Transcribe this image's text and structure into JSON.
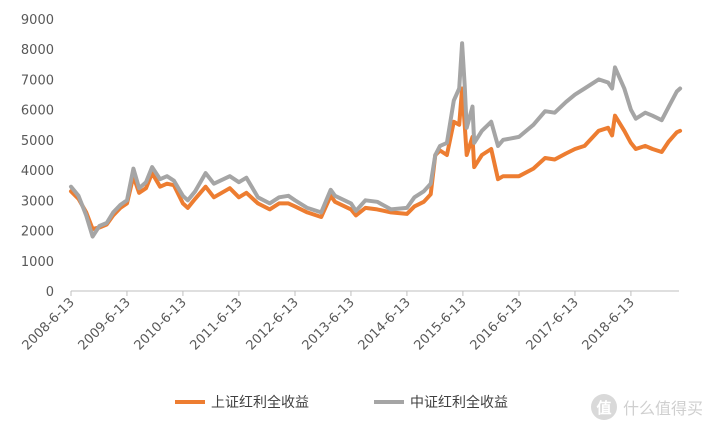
{
  "chart_data": {
    "type": "line",
    "title": "",
    "xlabel": "",
    "ylabel": "",
    "ylim": [
      0,
      9000
    ],
    "yticks": [
      0,
      1000,
      2000,
      3000,
      4000,
      5000,
      6000,
      7000,
      8000,
      9000
    ],
    "xlim": [
      "2008-06-13",
      "2019-04-30"
    ],
    "xticks": [
      "2008-6-13",
      "2009-6-13",
      "2010-6-13",
      "2011-6-13",
      "2012-6-13",
      "2013-6-13",
      "2014-6-13",
      "2015-6-13",
      "2016-6-13",
      "2017-6-13",
      "2018-6-13"
    ],
    "grid": false,
    "legend_position": "bottom",
    "series": [
      {
        "name": "上证红利全收益",
        "color": "#ED7D31",
        "points": [
          [
            "2008-06-13",
            3300
          ],
          [
            "2008-08-01",
            3050
          ],
          [
            "2008-09-20",
            2600
          ],
          [
            "2008-11-01",
            2050
          ],
          [
            "2008-12-15",
            2100
          ],
          [
            "2009-02-01",
            2200
          ],
          [
            "2009-03-15",
            2500
          ],
          [
            "2009-05-01",
            2750
          ],
          [
            "2009-06-13",
            2900
          ],
          [
            "2009-07-25",
            3800
          ],
          [
            "2009-08-31",
            3250
          ],
          [
            "2009-10-15",
            3400
          ],
          [
            "2009-11-24",
            3900
          ],
          [
            "2010-01-15",
            3450
          ],
          [
            "2010-03-01",
            3550
          ],
          [
            "2010-04-15",
            3500
          ],
          [
            "2010-06-13",
            2900
          ],
          [
            "2010-07-15",
            2750
          ],
          [
            "2010-09-01",
            3050
          ],
          [
            "2010-11-08",
            3450
          ],
          [
            "2011-01-01",
            3100
          ],
          [
            "2011-04-15",
            3400
          ],
          [
            "2011-06-13",
            3100
          ],
          [
            "2011-08-01",
            3250
          ],
          [
            "2011-10-15",
            2900
          ],
          [
            "2011-12-31",
            2700
          ],
          [
            "2012-03-01",
            2900
          ],
          [
            "2012-05-01",
            2900
          ],
          [
            "2012-06-13",
            2800
          ],
          [
            "2012-09-01",
            2600
          ],
          [
            "2012-12-01",
            2450
          ],
          [
            "2013-02-01",
            3150
          ],
          [
            "2013-03-01",
            2950
          ],
          [
            "2013-06-13",
            2700
          ],
          [
            "2013-07-15",
            2500
          ],
          [
            "2013-09-15",
            2750
          ],
          [
            "2013-12-01",
            2700
          ],
          [
            "2014-03-01",
            2600
          ],
          [
            "2014-06-13",
            2550
          ],
          [
            "2014-08-01",
            2800
          ],
          [
            "2014-10-01",
            2950
          ],
          [
            "2014-11-15",
            3200
          ],
          [
            "2014-12-15",
            4500
          ],
          [
            "2015-01-15",
            4650
          ],
          [
            "2015-03-01",
            4500
          ],
          [
            "2015-04-15",
            5600
          ],
          [
            "2015-05-20",
            5500
          ],
          [
            "2015-06-08",
            6700
          ],
          [
            "2015-06-25",
            5500
          ],
          [
            "2015-07-08",
            4500
          ],
          [
            "2015-08-15",
            5100
          ],
          [
            "2015-08-26",
            4100
          ],
          [
            "2015-10-15",
            4500
          ],
          [
            "2015-12-15",
            4700
          ],
          [
            "2016-01-28",
            3700
          ],
          [
            "2016-03-01",
            3800
          ],
          [
            "2016-06-13",
            3800
          ],
          [
            "2016-09-15",
            4050
          ],
          [
            "2016-11-30",
            4400
          ],
          [
            "2017-02-01",
            4350
          ],
          [
            "2017-04-15",
            4550
          ],
          [
            "2017-06-13",
            4700
          ],
          [
            "2017-08-15",
            4800
          ],
          [
            "2017-11-15",
            5300
          ],
          [
            "2018-01-15",
            5400
          ],
          [
            "2018-02-10",
            5150
          ],
          [
            "2018-03-01",
            5800
          ],
          [
            "2018-05-01",
            5300
          ],
          [
            "2018-06-13",
            4900
          ],
          [
            "2018-07-15",
            4700
          ],
          [
            "2018-09-15",
            4800
          ],
          [
            "2018-11-01",
            4700
          ],
          [
            "2018-12-31",
            4600
          ],
          [
            "2019-02-15",
            4950
          ],
          [
            "2019-04-08",
            5250
          ],
          [
            "2019-04-30",
            5300
          ]
        ]
      },
      {
        "name": "中证红利全收益",
        "color": "#A5A5A5",
        "points": [
          [
            "2008-06-13",
            3450
          ],
          [
            "2008-08-01",
            3150
          ],
          [
            "2008-09-20",
            2500
          ],
          [
            "2008-11-01",
            1800
          ],
          [
            "2008-12-15",
            2150
          ],
          [
            "2009-02-01",
            2250
          ],
          [
            "2009-03-15",
            2600
          ],
          [
            "2009-05-01",
            2850
          ],
          [
            "2009-06-13",
            3000
          ],
          [
            "2009-07-25",
            4050
          ],
          [
            "2009-08-31",
            3400
          ],
          [
            "2009-10-15",
            3600
          ],
          [
            "2009-11-24",
            4100
          ],
          [
            "2010-01-15",
            3700
          ],
          [
            "2010-03-01",
            3800
          ],
          [
            "2010-04-15",
            3650
          ],
          [
            "2010-06-13",
            3150
          ],
          [
            "2010-07-15",
            3000
          ],
          [
            "2010-09-01",
            3300
          ],
          [
            "2010-11-08",
            3900
          ],
          [
            "2011-01-01",
            3550
          ],
          [
            "2011-04-15",
            3800
          ],
          [
            "2011-06-13",
            3600
          ],
          [
            "2011-08-01",
            3750
          ],
          [
            "2011-10-15",
            3100
          ],
          [
            "2011-12-31",
            2900
          ],
          [
            "2012-03-01",
            3100
          ],
          [
            "2012-05-01",
            3150
          ],
          [
            "2012-06-13",
            3000
          ],
          [
            "2012-09-01",
            2750
          ],
          [
            "2012-12-01",
            2600
          ],
          [
            "2013-02-01",
            3350
          ],
          [
            "2013-03-01",
            3150
          ],
          [
            "2013-06-13",
            2900
          ],
          [
            "2013-07-15",
            2650
          ],
          [
            "2013-09-15",
            3000
          ],
          [
            "2013-12-01",
            2950
          ],
          [
            "2014-03-01",
            2700
          ],
          [
            "2014-06-13",
            2750
          ],
          [
            "2014-08-01",
            3100
          ],
          [
            "2014-10-01",
            3300
          ],
          [
            "2014-11-15",
            3550
          ],
          [
            "2014-12-15",
            4500
          ],
          [
            "2015-01-15",
            4800
          ],
          [
            "2015-03-01",
            4900
          ],
          [
            "2015-04-15",
            6300
          ],
          [
            "2015-05-20",
            6700
          ],
          [
            "2015-06-08",
            8200
          ],
          [
            "2015-06-25",
            6800
          ],
          [
            "2015-07-08",
            5400
          ],
          [
            "2015-08-15",
            6100
          ],
          [
            "2015-08-26",
            4900
          ],
          [
            "2015-10-15",
            5300
          ],
          [
            "2015-12-15",
            5600
          ],
          [
            "2016-01-28",
            4800
          ],
          [
            "2016-03-01",
            5000
          ],
          [
            "2016-06-13",
            5100
          ],
          [
            "2016-09-15",
            5500
          ],
          [
            "2016-11-30",
            5950
          ],
          [
            "2017-02-01",
            5900
          ],
          [
            "2017-04-15",
            6250
          ],
          [
            "2017-06-13",
            6500
          ],
          [
            "2017-08-15",
            6700
          ],
          [
            "2017-11-15",
            7000
          ],
          [
            "2018-01-15",
            6900
          ],
          [
            "2018-02-10",
            6700
          ],
          [
            "2018-03-01",
            7400
          ],
          [
            "2018-05-01",
            6700
          ],
          [
            "2018-06-13",
            6000
          ],
          [
            "2018-07-15",
            5700
          ],
          [
            "2018-09-15",
            5900
          ],
          [
            "2018-11-01",
            5800
          ],
          [
            "2018-12-31",
            5650
          ],
          [
            "2019-02-15",
            6100
          ],
          [
            "2019-04-08",
            6600
          ],
          [
            "2019-04-30",
            6700
          ]
        ]
      }
    ]
  },
  "watermark": {
    "icon_glyph": "值",
    "text": "什么值得买",
    "icon_name": "smzdm-logo-icon"
  }
}
